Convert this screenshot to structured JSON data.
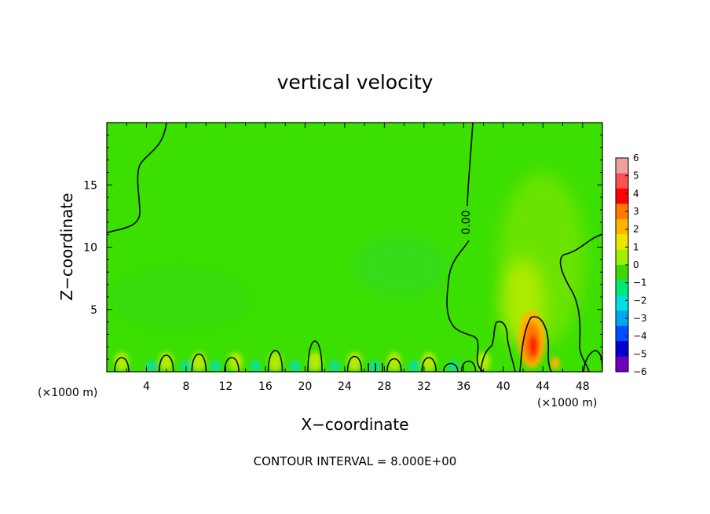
{
  "chart_data": {
    "type": "heatmap",
    "title": "vertical velocity",
    "xlabel": "X−coordinate",
    "ylabel": "Z−coordinate",
    "x_unit_left": "(×1000 m)",
    "x_unit_right": "(×1000 m)",
    "xlim": [
      0,
      50
    ],
    "ylim": [
      0,
      20
    ],
    "x_ticks": [
      4,
      8,
      12,
      16,
      20,
      24,
      28,
      32,
      36,
      40,
      44,
      48
    ],
    "y_ticks": [
      5,
      10,
      15
    ],
    "contour_label": "0.00",
    "contour_interval": "CONTOUR INTERVAL = 8.000E+00",
    "colorbar": {
      "ticks": [
        "6",
        "5",
        "4",
        "3",
        "2",
        "1",
        "0",
        "−1",
        "−2",
        "−3",
        "−4",
        "−5",
        "−6"
      ],
      "colors": [
        "#f0a0a0",
        "#ff5050",
        "#ff0000",
        "#ff7a00",
        "#ffb400",
        "#e8e800",
        "#9cf000",
        "#3cd800",
        "#00e878",
        "#00e0e0",
        "#00a8f0",
        "#0050ff",
        "#0000d0",
        "#7000c0"
      ]
    },
    "grid": false
  }
}
